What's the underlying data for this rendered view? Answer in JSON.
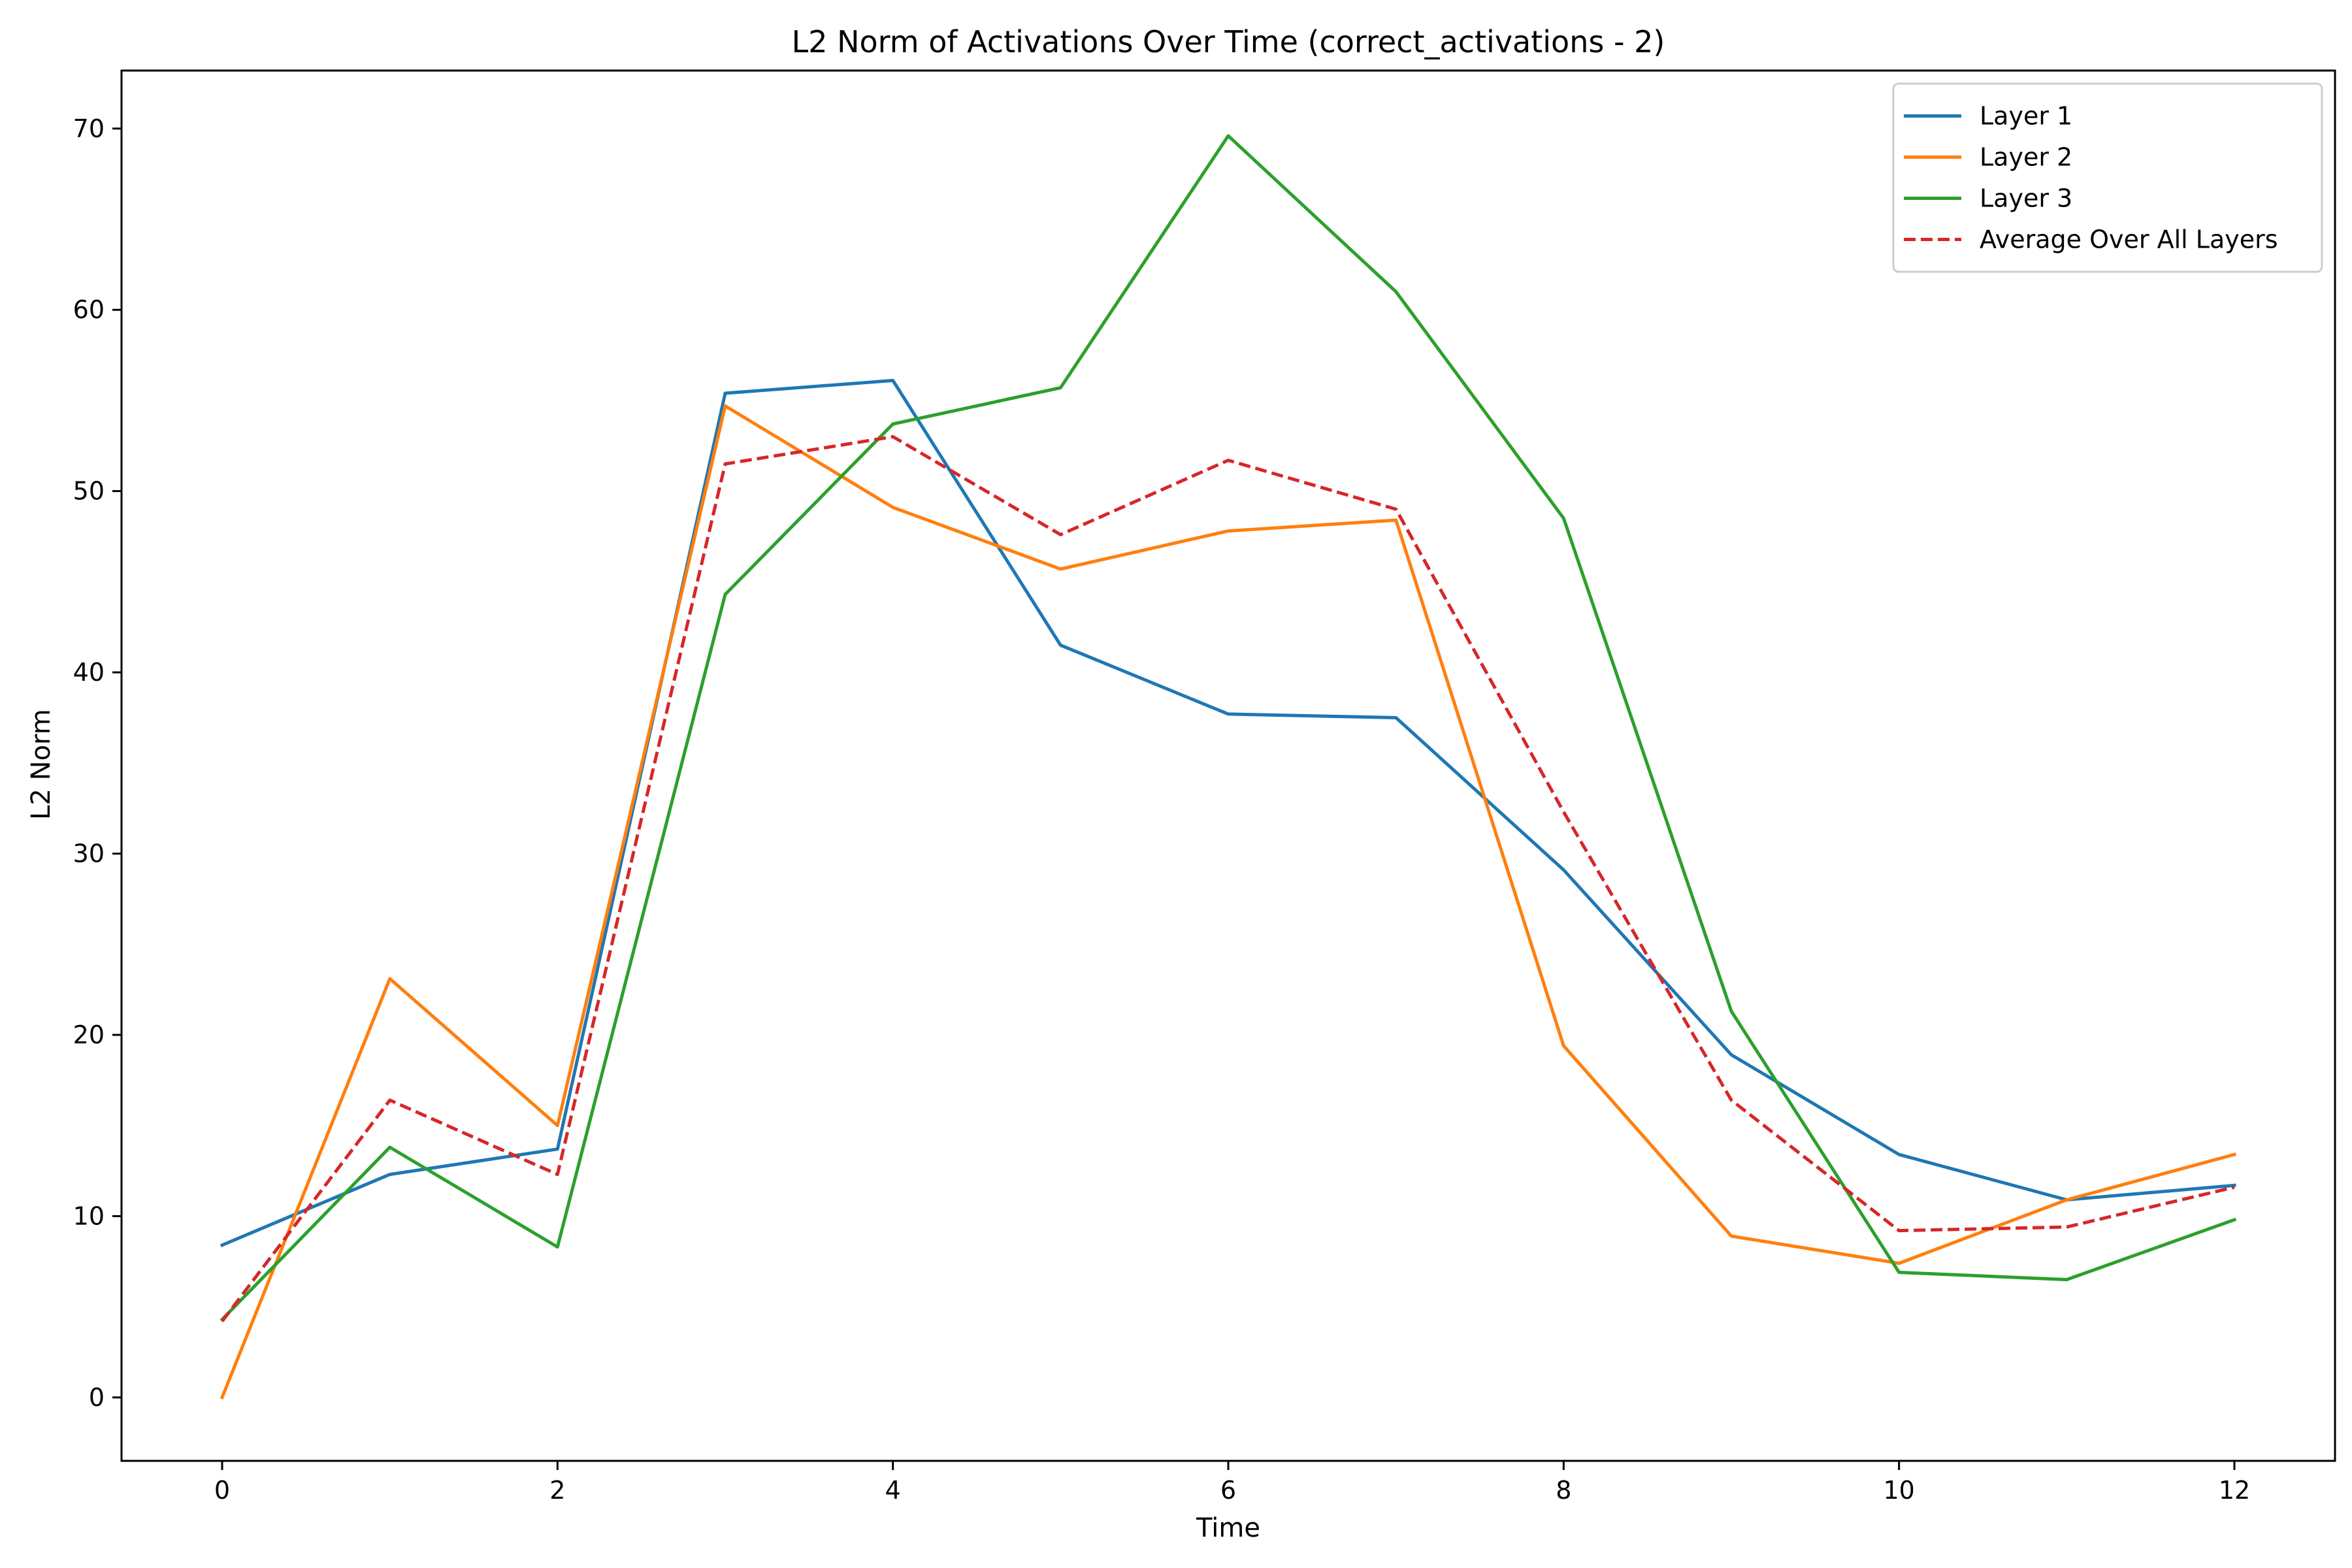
{
  "chart_data": {
    "type": "line",
    "title": "L2 Norm of Activations Over Time (correct_activations - 2)",
    "xlabel": "Time",
    "ylabel": "L2 Norm",
    "xlim": [
      -0.6,
      12.6
    ],
    "ylim": [
      -3.5,
      73.2
    ],
    "xticks": [
      0,
      2,
      4,
      6,
      8,
      10,
      12
    ],
    "yticks": [
      0,
      10,
      20,
      30,
      40,
      50,
      60,
      70
    ],
    "grid": false,
    "legend_position": "top-right",
    "x": [
      0,
      1,
      2,
      3,
      4,
      5,
      6,
      7,
      8,
      9,
      10,
      11,
      12
    ],
    "series": [
      {
        "name": "Layer 1",
        "color": "#1f77b4",
        "dash": "solid",
        "values": [
          8.4,
          12.3,
          13.7,
          55.4,
          56.1,
          41.5,
          37.7,
          37.5,
          29.1,
          18.9,
          13.4,
          10.9,
          11.7
        ]
      },
      {
        "name": "Layer 2",
        "color": "#ff7f0e",
        "dash": "solid",
        "values": [
          0.0,
          23.1,
          15.0,
          54.7,
          49.1,
          45.7,
          47.8,
          48.4,
          19.4,
          8.9,
          7.4,
          10.9,
          13.4
        ]
      },
      {
        "name": "Layer 3",
        "color": "#2ca02c",
        "dash": "solid",
        "values": [
          4.3,
          13.8,
          8.3,
          44.3,
          53.7,
          55.7,
          69.6,
          61.0,
          48.5,
          21.3,
          6.9,
          6.5,
          9.8
        ]
      },
      {
        "name": "Average Over All Layers",
        "color": "#d62728",
        "dash": "dashed",
        "values": [
          4.2,
          16.4,
          12.3,
          51.5,
          53.0,
          47.6,
          51.7,
          49.0,
          32.3,
          16.4,
          9.2,
          9.4,
          11.6
        ]
      }
    ]
  }
}
